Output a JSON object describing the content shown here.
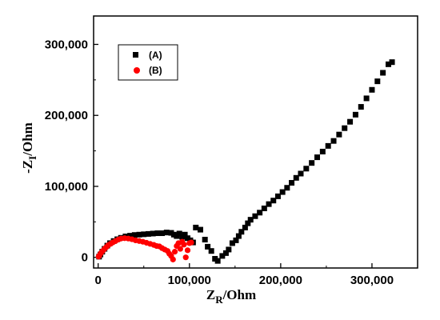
{
  "chart_data": {
    "type": "scatter",
    "xlabel_main": "Z",
    "xlabel_sub": "R",
    "xlabel_rest": "/Ohm",
    "ylabel_main": "-Z",
    "ylabel_sub": "I",
    "ylabel_rest": "/Ohm",
    "xlim": [
      -5000,
      350000
    ],
    "ylim": [
      -15000,
      340000
    ],
    "x_ticks": [
      0,
      100000,
      200000,
      300000
    ],
    "x_tick_labels": [
      "0",
      "100,000",
      "200,000",
      "300,000"
    ],
    "y_ticks": [
      0,
      100000,
      200000,
      300000
    ],
    "y_tick_labels": [
      "0",
      "100,000",
      "200,000",
      "300,000"
    ],
    "legend_position": "top-left",
    "series": [
      {
        "name": "(A)",
        "marker": "square",
        "color": "#000000",
        "points": [
          [
            1000,
            1000
          ],
          [
            2500,
            4000
          ],
          [
            4500,
            8000
          ],
          [
            7000,
            12000
          ],
          [
            10000,
            16500
          ],
          [
            13000,
            20000
          ],
          [
            17000,
            23000
          ],
          [
            21000,
            25500
          ],
          [
            25000,
            27500
          ],
          [
            30000,
            29500
          ],
          [
            35000,
            30500
          ],
          [
            40000,
            31500
          ],
          [
            45000,
            32000
          ],
          [
            50000,
            32500
          ],
          [
            55000,
            33000
          ],
          [
            60000,
            33500
          ],
          [
            65000,
            34000
          ],
          [
            70000,
            34000
          ],
          [
            75000,
            35000
          ],
          [
            80000,
            34500
          ],
          [
            83000,
            32000
          ],
          [
            86000,
            30000
          ],
          [
            89000,
            33500
          ],
          [
            92000,
            29000
          ],
          [
            95000,
            32000
          ],
          [
            98000,
            27000
          ],
          [
            101000,
            24000
          ],
          [
            104000,
            21000
          ],
          [
            107000,
            42000
          ],
          [
            112000,
            39000
          ],
          [
            117000,
            25000
          ],
          [
            120000,
            15000
          ],
          [
            124000,
            9000
          ],
          [
            128000,
            -2000
          ],
          [
            131000,
            -5000
          ],
          [
            136000,
            2000
          ],
          [
            140000,
            6000
          ],
          [
            143000,
            11000
          ],
          [
            147000,
            20000
          ],
          [
            151000,
            24000
          ],
          [
            154000,
            30000
          ],
          [
            157000,
            36000
          ],
          [
            161000,
            42000
          ],
          [
            164000,
            48000
          ],
          [
            167000,
            53000
          ],
          [
            172000,
            58000
          ],
          [
            177000,
            63000
          ],
          [
            182000,
            69000
          ],
          [
            187000,
            75000
          ],
          [
            192000,
            80000
          ],
          [
            197000,
            86000
          ],
          [
            202000,
            92000
          ],
          [
            207000,
            98000
          ],
          [
            212000,
            105000
          ],
          [
            217000,
            112000
          ],
          [
            222000,
            118000
          ],
          [
            228000,
            125000
          ],
          [
            234000,
            133000
          ],
          [
            240000,
            141000
          ],
          [
            246000,
            149000
          ],
          [
            252000,
            157000
          ],
          [
            258000,
            164000
          ],
          [
            264000,
            173000
          ],
          [
            270000,
            182000
          ],
          [
            276000,
            191000
          ],
          [
            282000,
            201000
          ],
          [
            288000,
            212000
          ],
          [
            294000,
            224000
          ],
          [
            300000,
            236000
          ],
          [
            306000,
            248000
          ],
          [
            312000,
            260000
          ],
          [
            318000,
            272000
          ],
          [
            322000,
            275000
          ]
        ]
      },
      {
        "name": "(B)",
        "marker": "circle",
        "color": "#ff0000",
        "points": [
          [
            500,
            1000
          ],
          [
            1500,
            3000
          ],
          [
            3000,
            6000
          ],
          [
            5000,
            9000
          ],
          [
            7000,
            12000
          ],
          [
            9000,
            14500
          ],
          [
            11000,
            17000
          ],
          [
            13500,
            19000
          ],
          [
            16000,
            21000
          ],
          [
            19000,
            23000
          ],
          [
            22000,
            25000
          ],
          [
            25000,
            26500
          ],
          [
            29000,
            27000
          ],
          [
            33000,
            26500
          ],
          [
            37000,
            25500
          ],
          [
            41000,
            24000
          ],
          [
            45000,
            23000
          ],
          [
            49000,
            22000
          ],
          [
            53000,
            20500
          ],
          [
            57000,
            19000
          ],
          [
            61000,
            17500
          ],
          [
            64000,
            16000
          ],
          [
            67000,
            15500
          ],
          [
            70000,
            13000
          ],
          [
            73000,
            11000
          ],
          [
            76000,
            9000
          ],
          [
            78000,
            5000
          ],
          [
            80000,
            2000
          ],
          [
            82000,
            -3000
          ],
          [
            84000,
            8000
          ],
          [
            86000,
            16000
          ],
          [
            88000,
            20000
          ],
          [
            90000,
            12000
          ],
          [
            92000,
            22000
          ],
          [
            94000,
            18000
          ],
          [
            96000,
            0
          ],
          [
            98000,
            10000
          ],
          [
            100000,
            20000
          ],
          [
            102000,
            21000
          ]
        ]
      }
    ]
  }
}
